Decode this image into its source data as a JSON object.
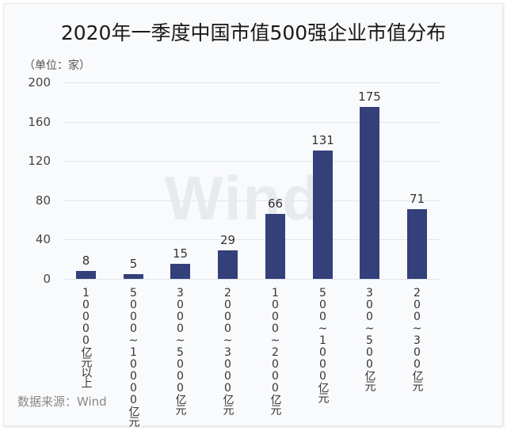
{
  "chart_data": {
    "type": "bar",
    "title": "2020年一季度中国市值500强企业市值分布",
    "unit_label": "（单位：家）",
    "xlabel": "",
    "ylabel": "",
    "ylim": [
      0,
      200
    ],
    "yticks": [
      0,
      40,
      80,
      120,
      160,
      200
    ],
    "grid": true,
    "legend": null,
    "categories": [
      "10000亿元以上",
      "5000~10000亿元",
      "3000~5000亿元",
      "2000~3000亿元",
      "1000~2000亿元",
      "500~1000亿元",
      "300~500亿元",
      "200~300亿元"
    ],
    "values": [
      8,
      5,
      15,
      29,
      66,
      131,
      175,
      71
    ],
    "bar_color": "#34407a",
    "source": "数据来源：Wind",
    "watermark": "Wind"
  },
  "labels": {
    "ytick_0": "0",
    "ytick_40": "40",
    "ytick_80": "80",
    "ytick_120": "120",
    "ytick_160": "160",
    "ytick_200": "200"
  }
}
